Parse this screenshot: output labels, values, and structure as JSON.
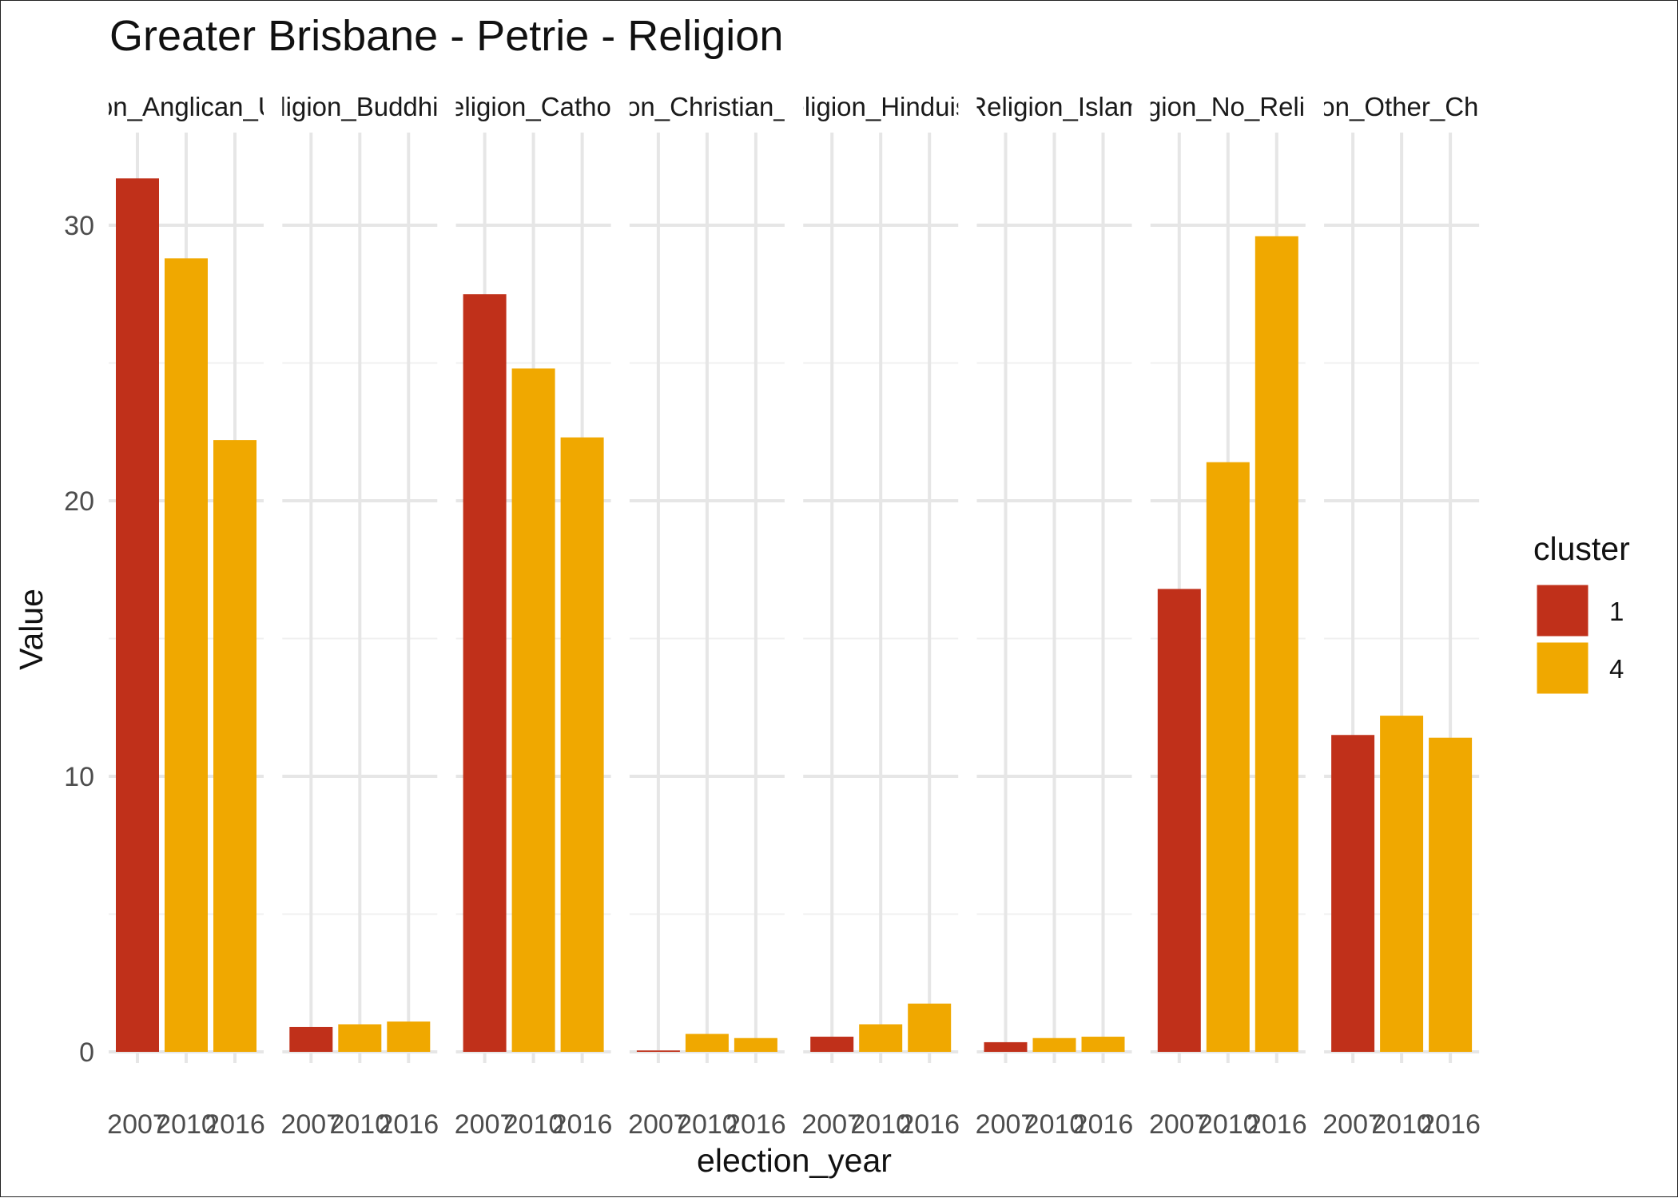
{
  "chart_data": {
    "type": "bar",
    "title": "Greater Brisbane - Petrie - Religion",
    "xlabel": "election_year",
    "ylabel": "Value",
    "ylim": [
      0,
      32.5
    ],
    "y_ticks": [
      0,
      10,
      20,
      30
    ],
    "grid": true,
    "facets": [
      {
        "label": "Religion_Anglican_Uniting",
        "categories": [
          "2007",
          "2010",
          "2016"
        ],
        "values": [
          31.7,
          28.8,
          22.2
        ],
        "clusters": [
          "1",
          "4",
          "4"
        ]
      },
      {
        "label": "Religion_Buddhism",
        "categories": [
          "2007",
          "2010",
          "2016"
        ],
        "values": [
          0.9,
          1.0,
          1.1
        ],
        "clusters": [
          "1",
          "4",
          "4"
        ]
      },
      {
        "label": "Religion_Catholic",
        "categories": [
          "2007",
          "2010",
          "2016"
        ],
        "values": [
          27.5,
          24.8,
          22.3
        ],
        "clusters": [
          "1",
          "4",
          "4"
        ]
      },
      {
        "label": "Religion_Christian_Other",
        "categories": [
          "2007",
          "2010",
          "2016"
        ],
        "values": [
          0.05,
          0.65,
          0.5
        ],
        "clusters": [
          "1",
          "4",
          "4"
        ]
      },
      {
        "label": "Religion_Hinduism",
        "categories": [
          "2007",
          "2010",
          "2016"
        ],
        "values": [
          0.55,
          1.0,
          1.75
        ],
        "clusters": [
          "1",
          "4",
          "4"
        ]
      },
      {
        "label": "Religion_Islam",
        "categories": [
          "2007",
          "2010",
          "2016"
        ],
        "values": [
          0.35,
          0.5,
          0.55
        ],
        "clusters": [
          "1",
          "4",
          "4"
        ]
      },
      {
        "label": "Religion_No_Religion",
        "categories": [
          "2007",
          "2010",
          "2016"
        ],
        "values": [
          16.8,
          21.4,
          29.6
        ],
        "clusters": [
          "1",
          "4",
          "4"
        ]
      },
      {
        "label": "Religion_Other_Christian",
        "categories": [
          "2007",
          "2010",
          "2016"
        ],
        "values": [
          11.5,
          12.2,
          11.4
        ],
        "clusters": [
          "1",
          "4",
          "4"
        ]
      }
    ],
    "legend": {
      "title": "cluster",
      "position": "right",
      "items": [
        {
          "label": "1",
          "color": "#C0301A"
        },
        {
          "label": "4",
          "color": "#F0A800"
        }
      ]
    }
  }
}
